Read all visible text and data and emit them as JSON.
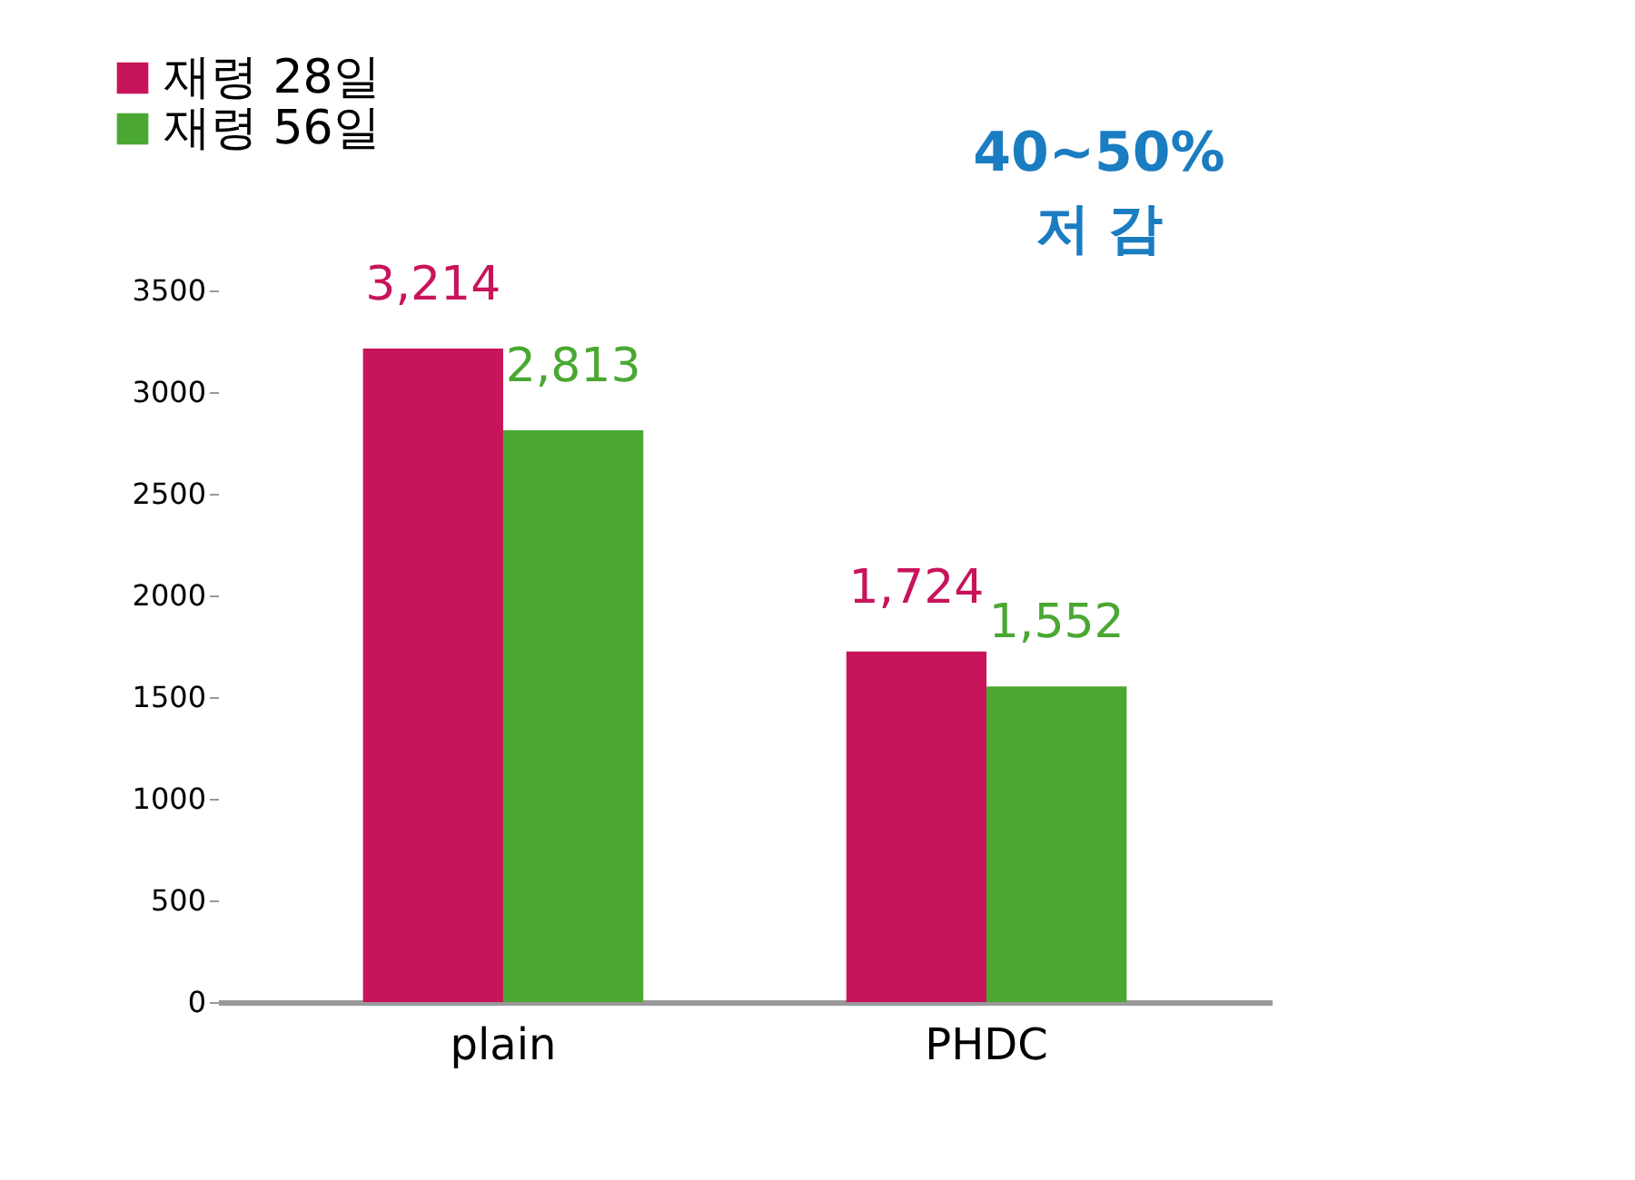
{
  "chart_data": {
    "type": "bar",
    "categories": [
      "plain",
      "PHDC"
    ],
    "series": [
      {
        "name": "재령 28일",
        "color": "#c8145a",
        "values": [
          3214,
          1724
        ],
        "value_labels": [
          "3,214",
          "1,724"
        ]
      },
      {
        "name": "재령 56일",
        "color": "#4aa832",
        "values": [
          2813,
          1552
        ],
        "value_labels": [
          "2,813",
          "1,552"
        ]
      }
    ],
    "ylim": [
      0,
      3500
    ],
    "yticks": [
      0,
      500,
      1000,
      1500,
      2000,
      2500,
      3000,
      3500
    ],
    "grid": false,
    "legend": "top left",
    "annotations": [
      "40~50%",
      "저 감"
    ]
  }
}
